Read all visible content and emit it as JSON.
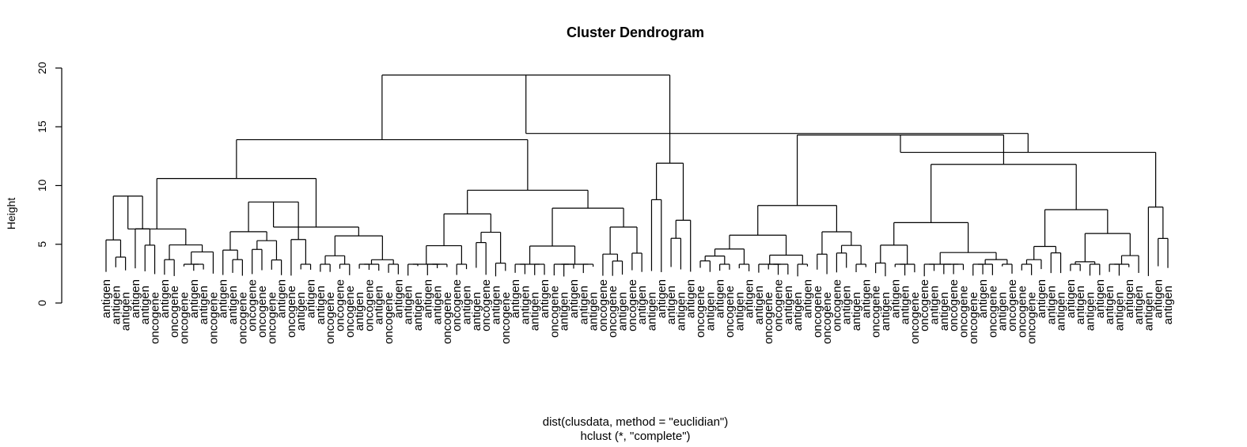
{
  "chart_data": {
    "type": "dendrogram",
    "title": "Cluster Dendrogram",
    "ylabel": "Height",
    "xlabel": "dist(clusdata, method = \"euclidian\")",
    "sublabel": "hclust (*, \"complete\")",
    "ylim": [
      0,
      20
    ],
    "yticks": [
      0,
      5,
      10,
      15,
      20
    ],
    "leaves": [
      "antigen",
      "antigen",
      "antigen",
      "antigen",
      "antigen",
      "oncogene",
      "antigen",
      "oncogene",
      "oncogene",
      "antigen",
      "antigen",
      "oncogene",
      "antigen",
      "antigen",
      "oncogene",
      "oncogene",
      "oncogene",
      "oncogene",
      "antigen",
      "oncogene",
      "antigen",
      "antigen",
      "antigen",
      "oncogene",
      "oncogene",
      "oncogene",
      "antigen",
      "oncogene",
      "antigen",
      "oncogene",
      "antigen",
      "antigen",
      "antigen",
      "antigen",
      "antigen",
      "oncogene",
      "oncogene",
      "antigen",
      "antigen",
      "oncogene",
      "antigen",
      "oncogene",
      "antigen",
      "antigen",
      "antigen",
      "antigen",
      "oncogene",
      "antigen",
      "antigen",
      "antigen",
      "antigen",
      "oncogene",
      "oncogene",
      "antigen",
      "oncogene",
      "antigen",
      "antigen",
      "antigen",
      "antigen",
      "antigen",
      "antigen",
      "oncogene",
      "antigen",
      "antigen",
      "oncogene",
      "antigen",
      "antigen",
      "antigen",
      "oncogene",
      "oncogene",
      "antigen",
      "antigen",
      "antigen",
      "oncogene",
      "oncogene",
      "oncogene",
      "antigen",
      "antigen",
      "antigen",
      "oncogene",
      "antigen",
      "antigen",
      "antigen",
      "oncogene",
      "oncogene",
      "antigen",
      "antigen",
      "oncogene",
      "oncogene",
      "oncogene",
      "antigen",
      "oncogene",
      "antigen",
      "oncogene",
      "oncogene",
      "oncogene",
      "antigen",
      "antigen",
      "antigen",
      "antigen",
      "antigen",
      "antigen",
      "antigen",
      "antigen",
      "antigen",
      "antigen",
      "antigen",
      "antigen",
      "antigen",
      "antigen"
    ],
    "merges": [
      {
        "i": 0,
        "j": 11,
        "h": 6.3
      },
      {
        "i": 0,
        "j": 5,
        "h": 9.1
      },
      {
        "i": 12,
        "j": 21,
        "h": 8.6
      },
      {
        "i": 0,
        "j": 30,
        "h": 10.6
      },
      {
        "i": 31,
        "j": 55,
        "h": 9.6
      },
      {
        "i": 0,
        "j": 55,
        "h": 13.9
      },
      {
        "i": 56,
        "j": 60,
        "h": 11.9
      },
      {
        "i": 0,
        "j": 60,
        "h": 19.4
      },
      {
        "i": 61,
        "j": 78,
        "h": 8.3
      },
      {
        "i": 79,
        "j": 106,
        "h": 11.8
      },
      {
        "i": 61,
        "j": 106,
        "h": 14.3
      }
    ]
  }
}
